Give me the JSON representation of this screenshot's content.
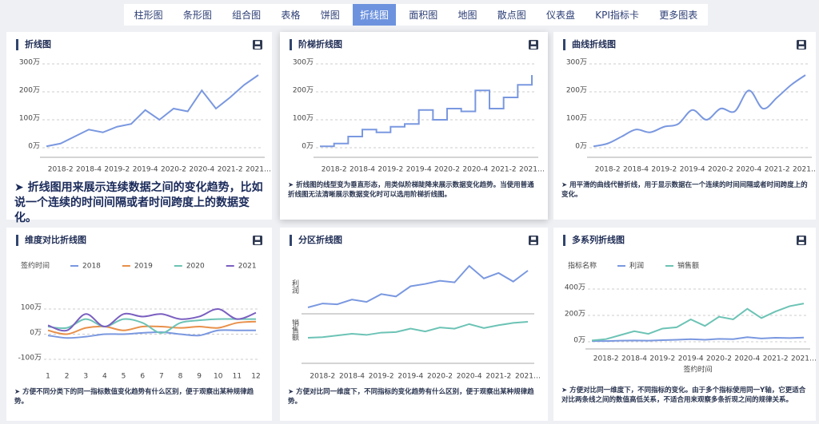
{
  "nav": {
    "tabs": [
      "柱形图",
      "条形图",
      "组合图",
      "表格",
      "饼图",
      "折线图",
      "面积图",
      "地图",
      "散点图",
      "仪表盘",
      "KPI指标卡",
      "更多图表"
    ],
    "active": 5
  },
  "chart_data": [
    {
      "type": "line",
      "title": "折线图",
      "interpolation": "linear",
      "categories": [
        null,
        "2018-2",
        null,
        "2018-4",
        null,
        "2019-2",
        null,
        "2019-4",
        null,
        "2020-2",
        null,
        "2020-4",
        null,
        "2021-2",
        null,
        "2021…"
      ],
      "values": [
        5,
        15,
        40,
        65,
        55,
        75,
        85,
        135,
        100,
        140,
        130,
        205,
        140,
        180,
        225,
        260
      ],
      "color": "#7a98e0",
      "ylim": [
        0,
        300
      ],
      "yticks": [
        {
          "value": 0,
          "label": "0万"
        },
        {
          "value": 100,
          "label": "100万"
        },
        {
          "value": 200,
          "label": "200万"
        },
        {
          "value": 300,
          "label": "300万"
        }
      ],
      "grid": true,
      "description": "➤ 折线图用来展示连续数据之间的变化趋势，比如说一个连续的时间间隔或者时间跨度上的数据变化。"
    },
    {
      "type": "line",
      "title": "阶梯折线图",
      "interpolation": "step",
      "categories": [
        null,
        "2018-2",
        null,
        "2018-4",
        null,
        "2019-2",
        null,
        "2019-4",
        null,
        "2020-2",
        null,
        "2020-4",
        null,
        "2021-2",
        null,
        "2021…"
      ],
      "values": [
        5,
        15,
        40,
        65,
        55,
        75,
        85,
        135,
        100,
        140,
        130,
        205,
        140,
        180,
        225,
        260
      ],
      "color": "#7a98e0",
      "ylim": [
        0,
        300
      ],
      "yticks": [
        {
          "value": 0,
          "label": "0万"
        },
        {
          "value": 100,
          "label": "100万"
        },
        {
          "value": 200,
          "label": "200万"
        },
        {
          "value": 300,
          "label": "300万"
        }
      ],
      "grid": true,
      "description": "➤ 折线图的线型变为垂直形态，用类似阶梯陡降来展示数据变化趋势。当使用普通折线图无法清晰展示数据变化时可以选用阶梯折线图。"
    },
    {
      "type": "line",
      "title": "曲线折线图",
      "interpolation": "smooth",
      "categories": [
        null,
        "2018-2",
        null,
        "2018-4",
        null,
        "2019-2",
        null,
        "2019-4",
        null,
        "2020-2",
        null,
        "2020-4",
        null,
        "2021-2",
        null,
        "2021…"
      ],
      "values": [
        5,
        15,
        40,
        65,
        55,
        75,
        85,
        135,
        100,
        140,
        130,
        205,
        140,
        180,
        225,
        260
      ],
      "color": "#7a98e0",
      "ylim": [
        0,
        300
      ],
      "yticks": [
        {
          "value": 0,
          "label": "0万"
        },
        {
          "value": 100,
          "label": "100万"
        },
        {
          "value": 200,
          "label": "200万"
        },
        {
          "value": 300,
          "label": "300万"
        }
      ],
      "grid": true,
      "description": "➤ 用平滑的曲线代替折线，用于显示数据在一个连续的时间间隔或者时间跨度上的变化。"
    },
    {
      "type": "line",
      "title": "维度对比折线图",
      "interpolation": "smooth",
      "legend_title": "签约时间",
      "categories": [
        "1",
        "2",
        "3",
        "4",
        "5",
        "6",
        "7",
        "8",
        "9",
        "10",
        "11",
        "12"
      ],
      "series": [
        {
          "name": "2018",
          "color": "#7a98e0",
          "values": [
            -5,
            -15,
            -10,
            0,
            0,
            5,
            8,
            0,
            -5,
            15,
            15,
            15
          ]
        },
        {
          "name": "2019",
          "color": "#e8904a",
          "values": [
            15,
            0,
            25,
            30,
            15,
            30,
            30,
            25,
            30,
            25,
            45,
            50
          ]
        },
        {
          "name": "2020",
          "color": "#6cc3b5",
          "values": [
            30,
            25,
            60,
            30,
            60,
            45,
            5,
            45,
            55,
            60,
            60,
            60
          ]
        },
        {
          "name": "2021",
          "color": "#7a5fc0",
          "values": [
            35,
            15,
            80,
            30,
            80,
            70,
            80,
            60,
            70,
            100,
            60,
            85
          ]
        }
      ],
      "ylim": [
        -100,
        100
      ],
      "yticks": [
        {
          "value": -100,
          "label": "-100万"
        },
        {
          "value": 0,
          "label": "0万"
        },
        {
          "value": 100,
          "label": "100万"
        }
      ],
      "grid": true,
      "description": "➤ 方便不同分类下的同一指标数值变化趋势有什么区别，便于观察出某种规律趋势。"
    },
    {
      "type": "line",
      "title": "分区折线图",
      "interpolation": "linear",
      "panels": true,
      "categories": [
        null,
        "2018-2",
        null,
        "2018-4",
        null,
        "2019-2",
        null,
        "2019-4",
        null,
        "2020-2",
        null,
        "2020-4",
        null,
        "2021-2",
        null,
        "2021…"
      ],
      "series": [
        {
          "name": "利润",
          "color": "#7a98e0",
          "values": [
            5,
            10,
            9,
            15,
            12,
            22,
            19,
            32,
            35,
            39,
            37,
            58,
            42,
            49,
            38,
            52
          ]
        },
        {
          "name": "销售额",
          "color": "#6cc3b5",
          "values": [
            10,
            20,
            50,
            80,
            60,
            100,
            110,
            170,
            120,
            190,
            170,
            250,
            180,
            230,
            270,
            290
          ]
        }
      ],
      "description": "➤ 方便对比同一维度下，不同指标的变化趋势有什么区别，便于观察出某种规律趋势。"
    },
    {
      "type": "line",
      "title": "多系列折线图",
      "interpolation": "linear",
      "legend_title": "指标名称",
      "xlabel": "签约时间",
      "categories": [
        null,
        "2018-2",
        null,
        "2018-4",
        null,
        "2019-2",
        null,
        "2019-4",
        null,
        "2020-2",
        null,
        "2020-4",
        null,
        "2021-2",
        null,
        "2021…"
      ],
      "series": [
        {
          "name": "利润",
          "color": "#7a98e0",
          "values": [
            5,
            5,
            8,
            10,
            8,
            12,
            15,
            20,
            15,
            22,
            20,
            35,
            25,
            30,
            28,
            32
          ]
        },
        {
          "name": "销售额",
          "color": "#6cc3b5",
          "values": [
            10,
            20,
            50,
            80,
            60,
            100,
            110,
            170,
            120,
            190,
            170,
            250,
            180,
            230,
            270,
            290
          ]
        }
      ],
      "ylim": [
        0,
        400
      ],
      "yticks": [
        {
          "value": 0,
          "label": "0万"
        },
        {
          "value": 200,
          "label": "200万"
        },
        {
          "value": 400,
          "label": "400万"
        }
      ],
      "grid": true,
      "description": "➤ 方便对比同一维度下，不同指标的变化。由于多个指标使用同一Y轴，它更适合对比两条线之间的数值高低关系，不适合用来观察多条折现之间的规律关系。"
    }
  ]
}
